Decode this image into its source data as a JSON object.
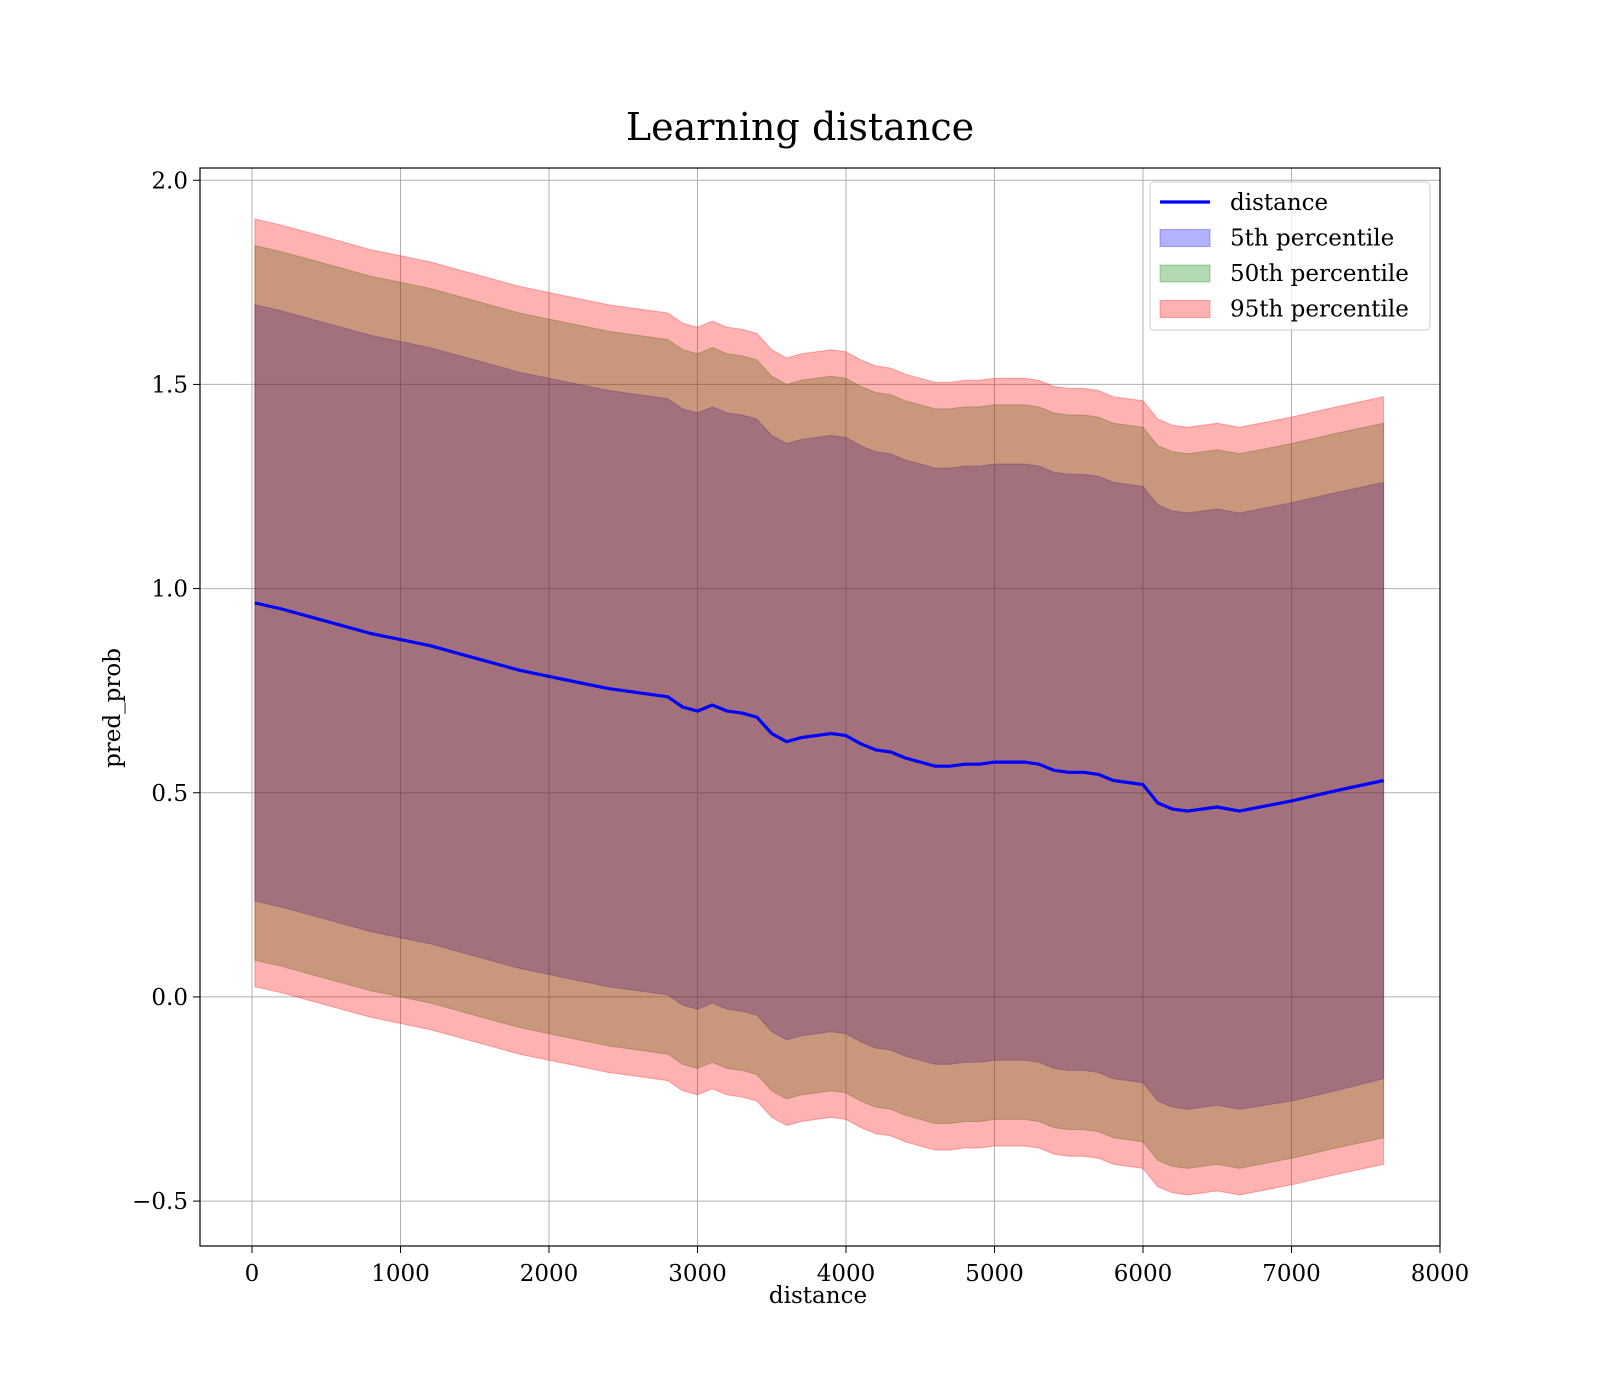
{
  "chart_data": {
    "type": "area",
    "title": "Learning distance",
    "xlabel": "distance",
    "ylabel": "pred_prob",
    "xlim": [
      -350,
      8000
    ],
    "ylim": [
      -0.61,
      2.03
    ],
    "xticks": [
      0,
      1000,
      2000,
      3000,
      4000,
      5000,
      6000,
      7000,
      8000
    ],
    "yticks": [
      -0.5,
      0.0,
      0.5,
      1.0,
      1.5,
      2.0
    ],
    "xtick_labels": [
      "0",
      "1000",
      "2000",
      "3000",
      "4000",
      "5000",
      "6000",
      "7000",
      "8000"
    ],
    "ytick_labels": [
      "−0.5",
      "0.0",
      "0.5",
      "1.0",
      "1.5",
      "2.0"
    ],
    "grid": true,
    "legend_position": "top-right",
    "x": [
      20,
      200,
      400,
      600,
      800,
      1000,
      1200,
      1400,
      1600,
      1800,
      2000,
      2200,
      2400,
      2600,
      2800,
      2900,
      3000,
      3100,
      3200,
      3300,
      3400,
      3500,
      3600,
      3700,
      3800,
      3900,
      4000,
      4100,
      4200,
      4300,
      4400,
      4500,
      4600,
      4700,
      4800,
      4900,
      5000,
      5100,
      5200,
      5300,
      5400,
      5500,
      5600,
      5700,
      5800,
      5900,
      6000,
      6100,
      6200,
      6300,
      6500,
      6650,
      7000,
      7300,
      7620
    ],
    "series": [
      {
        "name": "distance",
        "kind": "line",
        "color": "#0000ff",
        "values": [
          0.965,
          0.95,
          0.93,
          0.91,
          0.89,
          0.875,
          0.86,
          0.84,
          0.82,
          0.8,
          0.785,
          0.77,
          0.755,
          0.745,
          0.735,
          0.71,
          0.7,
          0.715,
          0.7,
          0.695,
          0.685,
          0.645,
          0.625,
          0.635,
          0.64,
          0.645,
          0.64,
          0.62,
          0.605,
          0.6,
          0.585,
          0.575,
          0.565,
          0.565,
          0.57,
          0.57,
          0.575,
          0.575,
          0.575,
          0.57,
          0.555,
          0.55,
          0.55,
          0.545,
          0.53,
          0.525,
          0.52,
          0.475,
          0.46,
          0.455,
          0.465,
          0.455,
          0.48,
          0.505,
          0.53
        ]
      },
      {
        "name": "5th percentile",
        "kind": "band",
        "color": "#0000ff",
        "opacity": 0.3,
        "lower": [
          0.235,
          0.22,
          0.2,
          0.18,
          0.16,
          0.145,
          0.13,
          0.11,
          0.09,
          0.07,
          0.055,
          0.04,
          0.025,
          0.015,
          0.005,
          -0.02,
          -0.03,
          -0.015,
          -0.03,
          -0.035,
          -0.045,
          -0.085,
          -0.105,
          -0.095,
          -0.09,
          -0.085,
          -0.09,
          -0.11,
          -0.125,
          -0.13,
          -0.145,
          -0.155,
          -0.165,
          -0.165,
          -0.16,
          -0.16,
          -0.155,
          -0.155,
          -0.155,
          -0.16,
          -0.175,
          -0.18,
          -0.18,
          -0.185,
          -0.2,
          -0.205,
          -0.21,
          -0.255,
          -0.27,
          -0.275,
          -0.265,
          -0.275,
          -0.255,
          -0.23,
          -0.2
        ],
        "upper": [
          1.695,
          1.68,
          1.66,
          1.64,
          1.62,
          1.605,
          1.59,
          1.57,
          1.55,
          1.53,
          1.515,
          1.5,
          1.485,
          1.475,
          1.465,
          1.44,
          1.43,
          1.445,
          1.43,
          1.425,
          1.415,
          1.375,
          1.355,
          1.365,
          1.37,
          1.375,
          1.37,
          1.35,
          1.335,
          1.33,
          1.315,
          1.305,
          1.295,
          1.295,
          1.3,
          1.3,
          1.305,
          1.305,
          1.305,
          1.3,
          1.285,
          1.28,
          1.28,
          1.275,
          1.26,
          1.255,
          1.25,
          1.205,
          1.19,
          1.185,
          1.195,
          1.185,
          1.21,
          1.235,
          1.26
        ]
      },
      {
        "name": "50th percentile",
        "kind": "band",
        "color": "#008000",
        "opacity": 0.3,
        "lower": [
          0.09,
          0.075,
          0.055,
          0.035,
          0.015,
          0.0,
          -0.015,
          -0.035,
          -0.055,
          -0.075,
          -0.09,
          -0.105,
          -0.12,
          -0.13,
          -0.14,
          -0.165,
          -0.175,
          -0.16,
          -0.175,
          -0.18,
          -0.19,
          -0.23,
          -0.25,
          -0.24,
          -0.235,
          -0.23,
          -0.235,
          -0.255,
          -0.27,
          -0.275,
          -0.29,
          -0.3,
          -0.31,
          -0.31,
          -0.305,
          -0.305,
          -0.3,
          -0.3,
          -0.3,
          -0.305,
          -0.32,
          -0.325,
          -0.325,
          -0.33,
          -0.345,
          -0.35,
          -0.355,
          -0.4,
          -0.415,
          -0.42,
          -0.41,
          -0.42,
          -0.395,
          -0.37,
          -0.345
        ],
        "upper": [
          1.84,
          1.825,
          1.805,
          1.785,
          1.765,
          1.75,
          1.735,
          1.715,
          1.695,
          1.675,
          1.66,
          1.645,
          1.63,
          1.62,
          1.61,
          1.585,
          1.575,
          1.59,
          1.575,
          1.57,
          1.56,
          1.52,
          1.5,
          1.51,
          1.515,
          1.52,
          1.515,
          1.495,
          1.48,
          1.475,
          1.46,
          1.45,
          1.44,
          1.44,
          1.445,
          1.445,
          1.45,
          1.45,
          1.45,
          1.445,
          1.43,
          1.425,
          1.425,
          1.42,
          1.405,
          1.4,
          1.395,
          1.35,
          1.335,
          1.33,
          1.34,
          1.33,
          1.355,
          1.38,
          1.405
        ]
      },
      {
        "name": "95th percentile",
        "kind": "band",
        "color": "#ff0000",
        "opacity": 0.3,
        "lower": [
          0.025,
          0.01,
          -0.01,
          -0.03,
          -0.05,
          -0.065,
          -0.08,
          -0.1,
          -0.12,
          -0.14,
          -0.155,
          -0.17,
          -0.185,
          -0.195,
          -0.205,
          -0.23,
          -0.24,
          -0.225,
          -0.24,
          -0.245,
          -0.255,
          -0.295,
          -0.315,
          -0.305,
          -0.3,
          -0.295,
          -0.3,
          -0.32,
          -0.335,
          -0.34,
          -0.355,
          -0.365,
          -0.375,
          -0.375,
          -0.37,
          -0.37,
          -0.365,
          -0.365,
          -0.365,
          -0.37,
          -0.385,
          -0.39,
          -0.39,
          -0.395,
          -0.41,
          -0.415,
          -0.42,
          -0.465,
          -0.48,
          -0.485,
          -0.475,
          -0.485,
          -0.46,
          -0.435,
          -0.41
        ],
        "upper": [
          1.905,
          1.89,
          1.87,
          1.85,
          1.83,
          1.815,
          1.8,
          1.78,
          1.76,
          1.74,
          1.725,
          1.71,
          1.695,
          1.685,
          1.675,
          1.65,
          1.64,
          1.655,
          1.64,
          1.635,
          1.625,
          1.585,
          1.565,
          1.575,
          1.58,
          1.585,
          1.58,
          1.56,
          1.545,
          1.54,
          1.525,
          1.515,
          1.505,
          1.505,
          1.51,
          1.51,
          1.515,
          1.515,
          1.515,
          1.51,
          1.495,
          1.49,
          1.49,
          1.485,
          1.47,
          1.465,
          1.46,
          1.415,
          1.4,
          1.395,
          1.405,
          1.395,
          1.42,
          1.445,
          1.47
        ]
      }
    ]
  }
}
